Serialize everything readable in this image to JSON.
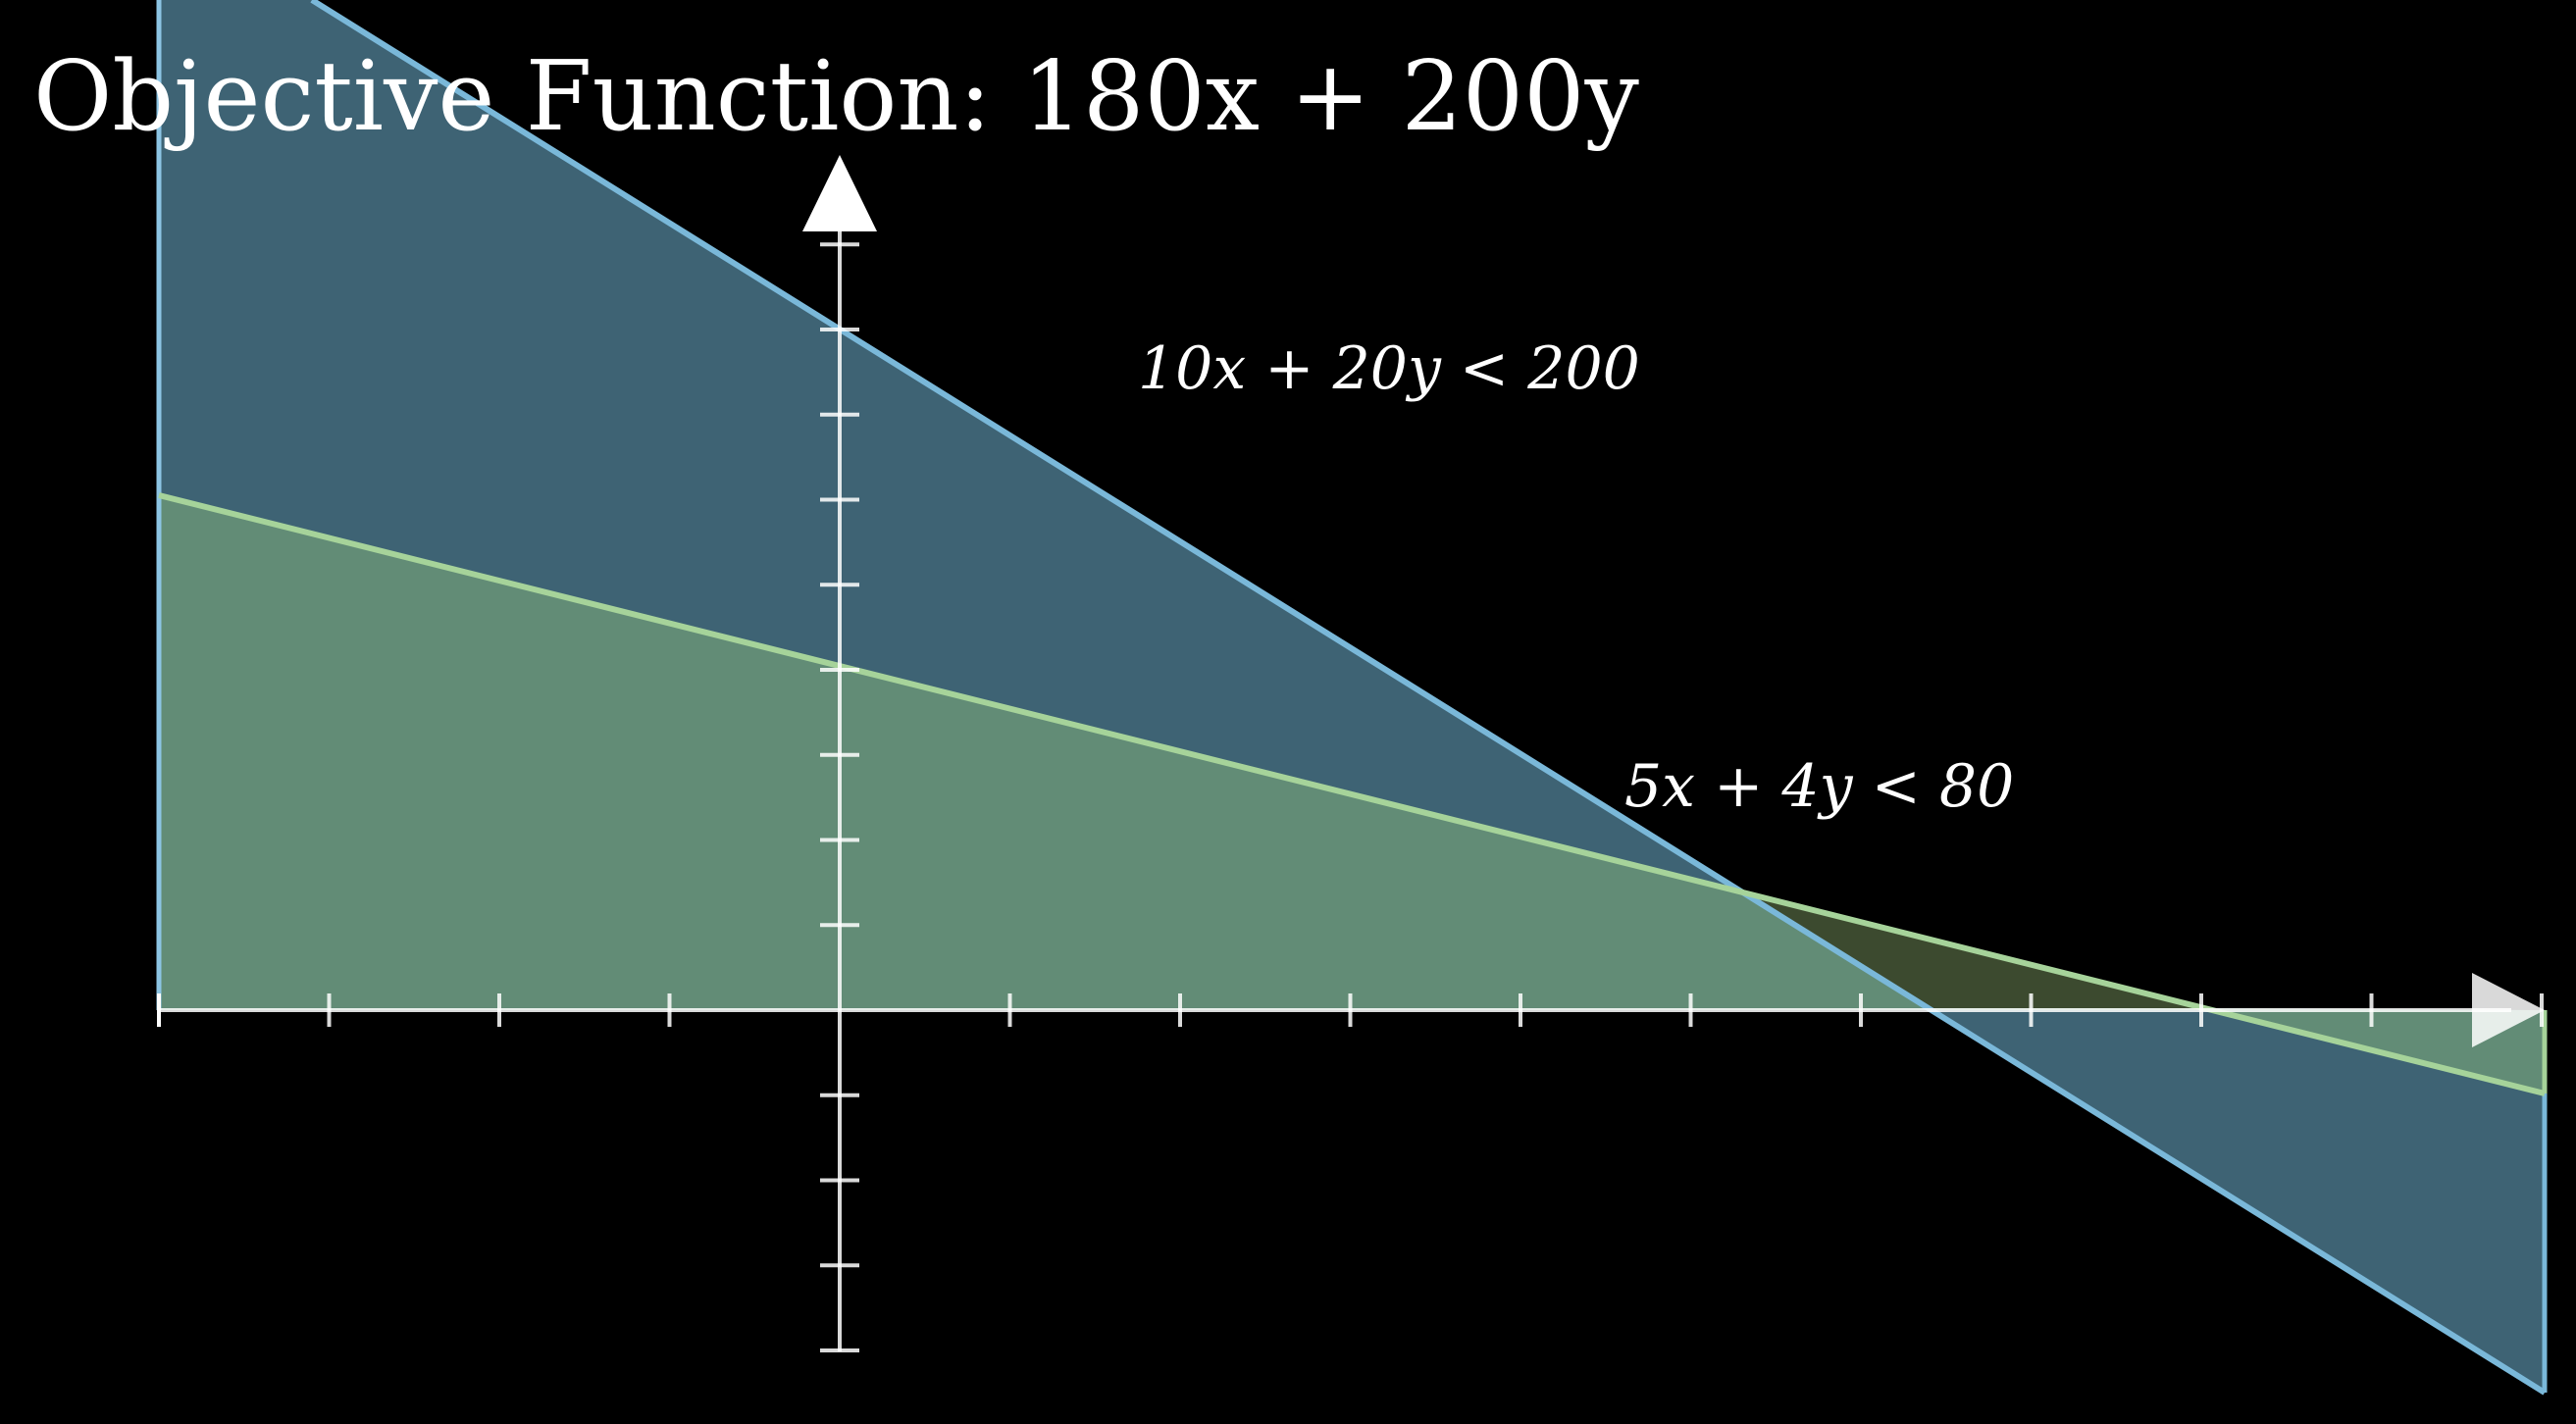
{
  "title": "Objective Function: 180x + 200y",
  "constraints": [
    {
      "label": "10x + 20y < 200",
      "color": "#7ab8d9",
      "fill": "#4f8fae"
    },
    {
      "label": "5x + 4y < 80",
      "color": "#a6d39a",
      "fill": "#8fc48a"
    }
  ],
  "axes": {
    "axis_color": "#ffffff",
    "x_ticks": [
      -4,
      -3,
      -2,
      -1,
      1,
      2,
      3,
      4,
      5,
      6,
      7,
      8,
      9,
      10
    ],
    "y_ticks": [
      -4,
      -3,
      -2,
      -1,
      1,
      2,
      3,
      4,
      5,
      6,
      7,
      8,
      9
    ]
  },
  "overlap_color": "#f5e27a"
}
